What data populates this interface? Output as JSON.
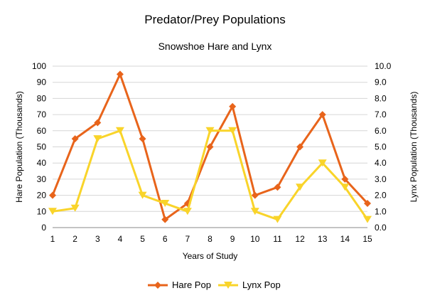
{
  "chart_data": {
    "type": "line",
    "title": "Predator/Prey Populations",
    "subtitle": "Snowshoe Hare and Lynx",
    "xlabel": "Years of Study",
    "ylabel_left": "Hare Population (Thousands)",
    "ylabel_right": "Lynx Population (Thousands)",
    "categories": [
      1,
      2,
      3,
      4,
      5,
      6,
      7,
      8,
      9,
      10,
      11,
      12,
      13,
      14,
      15
    ],
    "ylim_left": [
      0,
      100
    ],
    "ylim_right": [
      0,
      10
    ],
    "yticks_left": [
      "0",
      "10",
      "20",
      "30",
      "40",
      "50",
      "60",
      "70",
      "80",
      "90",
      "100"
    ],
    "yticks_right": [
      "0.0",
      "1.0",
      "2.0",
      "3.0",
      "4.0",
      "5.0",
      "6.0",
      "7.0",
      "8.0",
      "9.0",
      "10.0"
    ],
    "grid": true,
    "legend_position": "bottom",
    "series": [
      {
        "name": "Hare Pop",
        "axis": "left",
        "color": "#e8641b",
        "marker": "diamond",
        "values": [
          20,
          55,
          65,
          95,
          55,
          5,
          15,
          50,
          75,
          20,
          25,
          50,
          70,
          30,
          15
        ]
      },
      {
        "name": "Lynx Pop",
        "axis": "right",
        "color": "#f9d42a",
        "marker": "triangle-down",
        "values": [
          1.0,
          1.2,
          5.5,
          6.0,
          2.0,
          1.5,
          1.0,
          6.0,
          6.0,
          1.0,
          0.5,
          2.5,
          4.0,
          2.5,
          0.5
        ]
      }
    ]
  }
}
